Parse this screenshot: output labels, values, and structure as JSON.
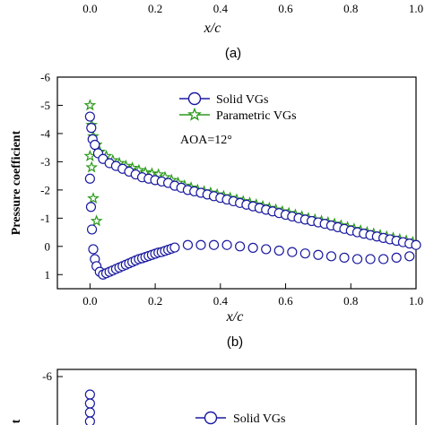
{
  "top_fragment": {
    "x_ticks": [
      "0.0",
      "0.2",
      "0.4",
      "0.6",
      "0.8",
      "1.0"
    ],
    "xlabel": "x/c",
    "caption": "(a)"
  },
  "bottom_fragment": {
    "y_ticks": [
      "-6"
    ],
    "ylabel_partial": "t",
    "legend_partial": "Solid VGs"
  },
  "chart_data": [
    {
      "type": "scatter",
      "panel": "(b)",
      "xlabel": "x/c",
      "ylabel": "Pressure coefficient",
      "xlim": [
        -0.1,
        1.0
      ],
      "ylim": [
        -6,
        1.5
      ],
      "y_inverted": true,
      "x_ticks": [
        "0.0",
        "0.2",
        "0.4",
        "0.6",
        "0.8",
        "1.0"
      ],
      "y_ticks": [
        "-6",
        "-5",
        "-4",
        "-3",
        "-2",
        "-1",
        "0",
        "1"
      ],
      "annotation": "AOA=12°",
      "legend_position": "top-right",
      "colors": {
        "solid": "#1a1aa0",
        "parametric": "#2a9a1a"
      },
      "series": [
        {
          "name": "Solid VGs",
          "marker": "circle",
          "upper": {
            "x": [
              0.0,
              0.004,
              0.008,
              0.015,
              0.025,
              0.04,
              0.06,
              0.08,
              0.1,
              0.12,
              0.14,
              0.16,
              0.18,
              0.2,
              0.22,
              0.24,
              0.26,
              0.28,
              0.3,
              0.32,
              0.34,
              0.36,
              0.38,
              0.4,
              0.42,
              0.44,
              0.46,
              0.48,
              0.5,
              0.52,
              0.54,
              0.56,
              0.58,
              0.6,
              0.62,
              0.64,
              0.66,
              0.68,
              0.7,
              0.72,
              0.74,
              0.76,
              0.78,
              0.8,
              0.82,
              0.84,
              0.86,
              0.88,
              0.9,
              0.92,
              0.94,
              0.96,
              0.98,
              1.0
            ],
            "y": [
              -4.6,
              -4.2,
              -3.8,
              -3.6,
              -3.3,
              -3.1,
              -2.95,
              -2.85,
              -2.75,
              -2.65,
              -2.55,
              -2.45,
              -2.4,
              -2.35,
              -2.3,
              -2.25,
              -2.15,
              -2.08,
              -2.0,
              -1.95,
              -1.9,
              -1.84,
              -1.78,
              -1.72,
              -1.66,
              -1.6,
              -1.54,
              -1.48,
              -1.42,
              -1.36,
              -1.3,
              -1.24,
              -1.18,
              -1.12,
              -1.06,
              -1.0,
              -0.95,
              -0.9,
              -0.85,
              -0.8,
              -0.74,
              -0.68,
              -0.62,
              -0.56,
              -0.5,
              -0.45,
              -0.4,
              -0.35,
              -0.3,
              -0.25,
              -0.2,
              -0.15,
              -0.1,
              -0.05
            ]
          },
          "lower": {
            "x": [
              0.0,
              0.003,
              0.006,
              0.01,
              0.015,
              0.02,
              0.03,
              0.04,
              0.05,
              0.06,
              0.07,
              0.08,
              0.09,
              0.1,
              0.11,
              0.12,
              0.13,
              0.14,
              0.15,
              0.16,
              0.17,
              0.18,
              0.19,
              0.2,
              0.21,
              0.22,
              0.23,
              0.24,
              0.25,
              0.26,
              0.3,
              0.34,
              0.38,
              0.42,
              0.46,
              0.5,
              0.54,
              0.58,
              0.62,
              0.66,
              0.7,
              0.74,
              0.78,
              0.82,
              0.86,
              0.9,
              0.94,
              0.98
            ],
            "y": [
              -2.4,
              -1.4,
              -0.6,
              0.1,
              0.45,
              0.7,
              0.9,
              1.0,
              0.95,
              0.9,
              0.85,
              0.8,
              0.75,
              0.7,
              0.65,
              0.6,
              0.55,
              0.5,
              0.45,
              0.42,
              0.38,
              0.34,
              0.3,
              0.26,
              0.22,
              0.2,
              0.16,
              0.12,
              0.08,
              0.04,
              -0.05,
              -0.05,
              -0.05,
              -0.05,
              0.0,
              0.05,
              0.1,
              0.15,
              0.2,
              0.25,
              0.3,
              0.35,
              0.4,
              0.45,
              0.45,
              0.45,
              0.4,
              0.35
            ]
          }
        },
        {
          "name": "Parametric VGs",
          "marker": "star",
          "upper": {
            "x": [
              0.0,
              0.005,
              0.01,
              0.02,
              0.03,
              0.05,
              0.07,
              0.09,
              0.11,
              0.13,
              0.15,
              0.17,
              0.19,
              0.21,
              0.23,
              0.25,
              0.27,
              0.29,
              0.31,
              0.33,
              0.35,
              0.37,
              0.39,
              0.41,
              0.43,
              0.45,
              0.47,
              0.49,
              0.51,
              0.53,
              0.55,
              0.57,
              0.59,
              0.61,
              0.63,
              0.65,
              0.67,
              0.69,
              0.71,
              0.73,
              0.75,
              0.77,
              0.79,
              0.81,
              0.83,
              0.85,
              0.87,
              0.89,
              0.91,
              0.93,
              0.95,
              0.97,
              0.99
            ],
            "y": [
              -5.0,
              -4.3,
              -3.9,
              -3.6,
              -3.35,
              -3.2,
              -3.05,
              -2.95,
              -2.85,
              -2.78,
              -2.7,
              -2.62,
              -2.58,
              -2.55,
              -2.45,
              -2.35,
              -2.25,
              -2.15,
              -2.08,
              -2.0,
              -1.95,
              -1.9,
              -1.84,
              -1.78,
              -1.72,
              -1.66,
              -1.6,
              -1.54,
              -1.48,
              -1.42,
              -1.36,
              -1.3,
              -1.24,
              -1.18,
              -1.12,
              -1.06,
              -1.0,
              -0.95,
              -0.9,
              -0.85,
              -0.8,
              -0.74,
              -0.68,
              -0.62,
              -0.56,
              -0.5,
              -0.45,
              -0.4,
              -0.35,
              -0.3,
              -0.25,
              -0.2,
              -0.15
            ]
          },
          "lower": {
            "x": [
              0.0,
              0.005,
              0.01,
              0.02
            ],
            "y": [
              -3.2,
              -2.8,
              -1.7,
              -0.9
            ]
          }
        }
      ]
    }
  ]
}
